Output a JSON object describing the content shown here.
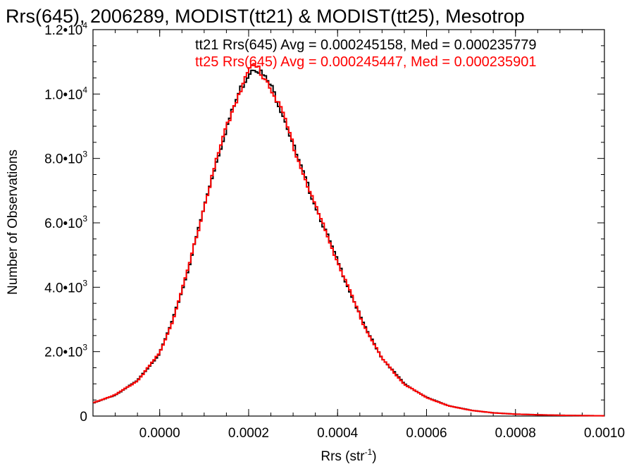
{
  "chart_data": {
    "type": "line",
    "title": "Rrs(645), 2006289, MODIST(tt21) & MODIST(tt25), Mesotrop",
    "xlabel": "Rrs (str",
    "xlabel_sup": "-1",
    "xlabel_close": ")",
    "ylabel": "Number of Observations",
    "xlim": [
      -0.00015,
      0.001
    ],
    "ylim": [
      0,
      12000
    ],
    "x_ticks": [
      {
        "value": 0.0,
        "label": "0.0000"
      },
      {
        "value": 0.0002,
        "label": "0.0002"
      },
      {
        "value": 0.0004,
        "label": "0.0004"
      },
      {
        "value": 0.0006,
        "label": "0.0006"
      },
      {
        "value": 0.0008,
        "label": "0.0008"
      },
      {
        "value": 0.001,
        "label": "0.0010"
      }
    ],
    "y_ticks": [
      {
        "value": 0,
        "base": "0",
        "exp": ""
      },
      {
        "value": 2000,
        "base": "2.0•10",
        "exp": "3"
      },
      {
        "value": 4000,
        "base": "4.0•10",
        "exp": "3"
      },
      {
        "value": 6000,
        "base": "6.0•10",
        "exp": "3"
      },
      {
        "value": 8000,
        "base": "8.0•10",
        "exp": "3"
      },
      {
        "value": 10000,
        "base": "1.0•10",
        "exp": "4"
      },
      {
        "value": 12000,
        "base": "1.2•10",
        "exp": "4"
      }
    ],
    "annotations": [
      {
        "text": "tt21 Rrs(645) Avg = 0.000245158, Med = 0.000235779",
        "color": "#000000"
      },
      {
        "text": "tt25 Rrs(645) Avg = 0.000245447, Med = 0.000235901",
        "color": "#ff0000"
      }
    ],
    "series": [
      {
        "color": "#000000",
        "x": [
          -0.00015,
          -0.0001,
          -5e-05,
          0.0,
          3e-05,
          6e-05,
          9e-05,
          0.00012,
          0.00015,
          0.00018,
          0.0002,
          0.00021,
          0.00022,
          0.00025,
          0.00028,
          0.00031,
          0.00034,
          0.00037,
          0.0004,
          0.00043,
          0.00046,
          0.0005,
          0.00055,
          0.0006,
          0.00065,
          0.0007,
          0.00075,
          0.0008,
          0.00085,
          0.0009,
          0.00095,
          0.001
        ],
        "y": [
          400,
          650,
          1100,
          1950,
          3000,
          4350,
          5950,
          7550,
          8950,
          10100,
          10650,
          10850,
          10800,
          10250,
          9300,
          8000,
          6900,
          5850,
          4800,
          3800,
          2800,
          1800,
          1000,
          580,
          320,
          180,
          100,
          60,
          40,
          25,
          15,
          10
        ]
      },
      {
        "color": "#ff0000",
        "x": [
          -0.00015,
          -0.0001,
          -5e-05,
          0.0,
          3e-05,
          6e-05,
          9e-05,
          0.00012,
          0.00015,
          0.00018,
          0.0002,
          0.00021,
          0.00022,
          0.00025,
          0.00028,
          0.00031,
          0.00034,
          0.00037,
          0.0004,
          0.00043,
          0.00046,
          0.0005,
          0.00055,
          0.0006,
          0.00065,
          0.0007,
          0.00075,
          0.0008,
          0.00085,
          0.0009,
          0.00095,
          0.001
        ],
        "y": [
          410,
          660,
          1090,
          1960,
          2990,
          4360,
          5960,
          7560,
          8970,
          10120,
          10680,
          10900,
          10820,
          10230,
          9280,
          8010,
          6890,
          5840,
          4790,
          3790,
          2790,
          1790,
          990,
          575,
          315,
          178,
          99,
          59,
          39,
          24,
          14,
          9
        ]
      }
    ],
    "grid": false
  }
}
